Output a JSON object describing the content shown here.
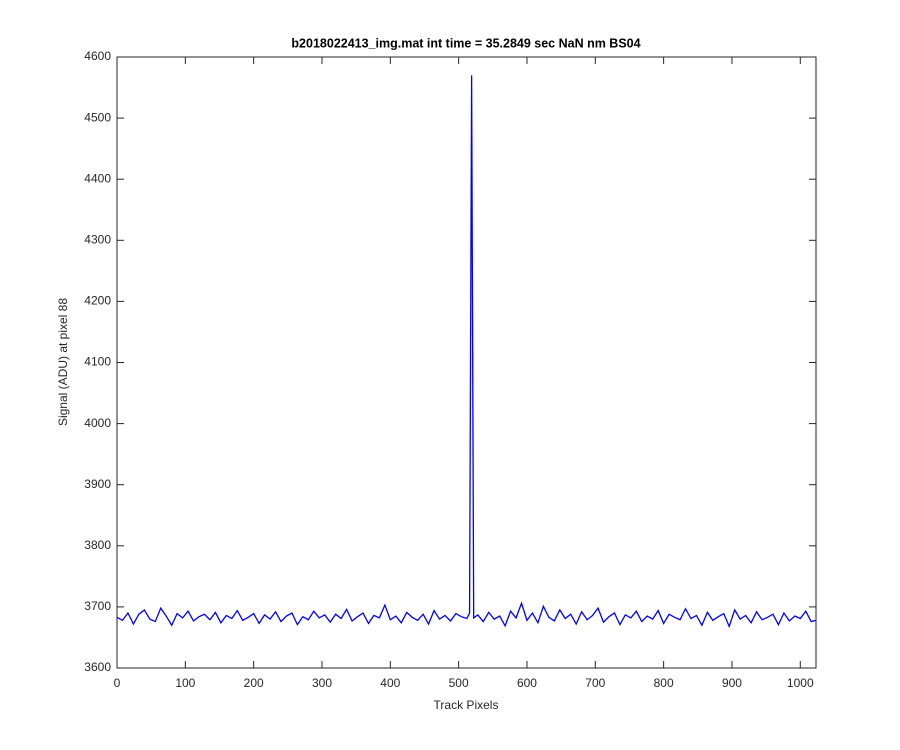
{
  "chart_data": {
    "type": "line",
    "title": "b2018022413_img.mat int time = 35.2849 sec  NaN nm BS04",
    "x_label": "Track Pixels",
    "y_label": "Signal (ADU) at pixel 88",
    "xlim": [
      0,
      1023
    ],
    "ylim": [
      3600,
      4600
    ],
    "xticks": [
      0,
      100,
      200,
      300,
      400,
      500,
      600,
      700,
      800,
      900,
      1000
    ],
    "yticks": [
      3600,
      3700,
      3800,
      3900,
      4000,
      4100,
      4200,
      4300,
      4400,
      4500,
      4600
    ],
    "x": [
      0,
      8,
      16,
      24,
      32,
      40,
      48,
      56,
      64,
      72,
      80,
      88,
      96,
      104,
      112,
      120,
      128,
      136,
      144,
      152,
      160,
      168,
      176,
      184,
      192,
      200,
      208,
      216,
      224,
      232,
      240,
      248,
      256,
      264,
      272,
      280,
      288,
      296,
      304,
      312,
      320,
      328,
      336,
      344,
      352,
      360,
      368,
      376,
      384,
      392,
      400,
      408,
      416,
      424,
      432,
      440,
      448,
      456,
      464,
      472,
      480,
      488,
      496,
      504,
      512,
      516,
      519,
      522,
      528,
      536,
      544,
      552,
      560,
      568,
      576,
      584,
      592,
      600,
      608,
      616,
      624,
      632,
      640,
      648,
      656,
      664,
      672,
      680,
      688,
      696,
      704,
      712,
      720,
      728,
      736,
      744,
      752,
      760,
      768,
      776,
      784,
      792,
      800,
      808,
      816,
      824,
      832,
      840,
      848,
      856,
      864,
      872,
      880,
      888,
      896,
      904,
      912,
      920,
      928,
      936,
      944,
      952,
      960,
      968,
      976,
      984,
      992,
      1000,
      1008,
      1016,
      1023
    ],
    "series": [
      {
        "name": "signal",
        "color": "#0000ff",
        "values": [
          3683,
          3678,
          3690,
          3672,
          3688,
          3695,
          3680,
          3676,
          3698,
          3685,
          3670,
          3689,
          3682,
          3693,
          3677,
          3684,
          3688,
          3679,
          3691,
          3674,
          3686,
          3681,
          3694,
          3678,
          3683,
          3689,
          3673,
          3687,
          3680,
          3692,
          3676,
          3685,
          3690,
          3671,
          3684,
          3679,
          3693,
          3682,
          3687,
          3675,
          3688,
          3681,
          3696,
          3677,
          3684,
          3690,
          3673,
          3686,
          3682,
          3703,
          3679,
          3685,
          3674,
          3691,
          3683,
          3678,
          3688,
          3672,
          3694,
          3680,
          3686,
          3677,
          3689,
          3684,
          3681,
          3690,
          4570,
          3682,
          3687,
          3676,
          3691,
          3680,
          3685,
          3669,
          3693,
          3682,
          3706,
          3678,
          3690,
          3674,
          3701,
          3683,
          3677,
          3695,
          3681,
          3688,
          3672,
          3692,
          3679,
          3686,
          3698,
          3675,
          3684,
          3690,
          3671,
          3687,
          3682,
          3693,
          3676,
          3685,
          3680,
          3694,
          3673,
          3688,
          3683,
          3679,
          3697,
          3681,
          3686,
          3670,
          3691,
          3678,
          3684,
          3689,
          3668,
          3695,
          3680,
          3686,
          3674,
          3692,
          3679,
          3683,
          3688,
          3671,
          3690,
          3677,
          3685,
          3681,
          3693,
          3676,
          3678
        ]
      }
    ]
  }
}
